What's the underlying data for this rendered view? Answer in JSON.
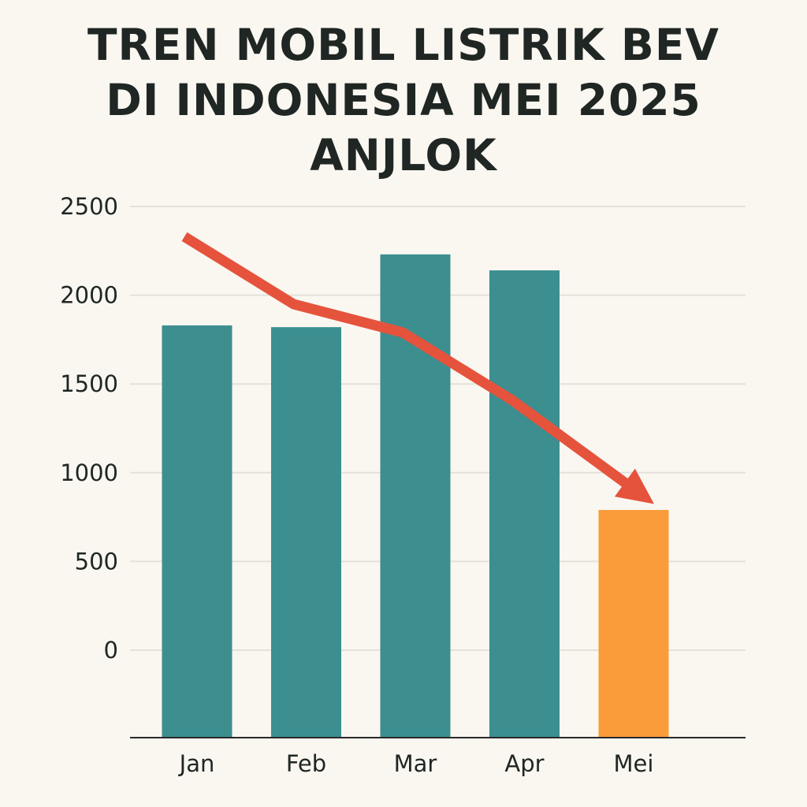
{
  "title": {
    "line1": "TREN MOBIL LISTRIK BEV",
    "line2": "DI INDONESIA MEI 2025",
    "line3": "ANJLOK"
  },
  "colors": {
    "background": "#faf7f1",
    "bar": "#3c8e8f",
    "highlight_bar": "#fa9c3a",
    "trend_arrow": "#e5533d",
    "gridline": "#e4e1da",
    "axis": "#2a2a2a",
    "text": "#1f2623"
  },
  "chart_data": {
    "type": "bar",
    "title": "TREN MOBIL LISTRIK BEV DI INDONESIA MEI 2025 ANJLOK",
    "categories": [
      "Jan",
      "Feb",
      "Mar",
      "Apr",
      "Mei"
    ],
    "values": [
      1830,
      1820,
      2230,
      2140,
      790
    ],
    "highlight_index": 4,
    "yticks": [
      0,
      500,
      1000,
      1500,
      2000,
      2500
    ],
    "ylim": [
      -500,
      2500
    ],
    "xlabel": "",
    "ylabel": "",
    "grid": true,
    "trend_arrow": {
      "points": [
        [
          0,
          2330
        ],
        [
          1,
          1950
        ],
        [
          2,
          1790
        ],
        [
          3,
          1410
        ],
        [
          4,
          960
        ]
      ]
    }
  }
}
